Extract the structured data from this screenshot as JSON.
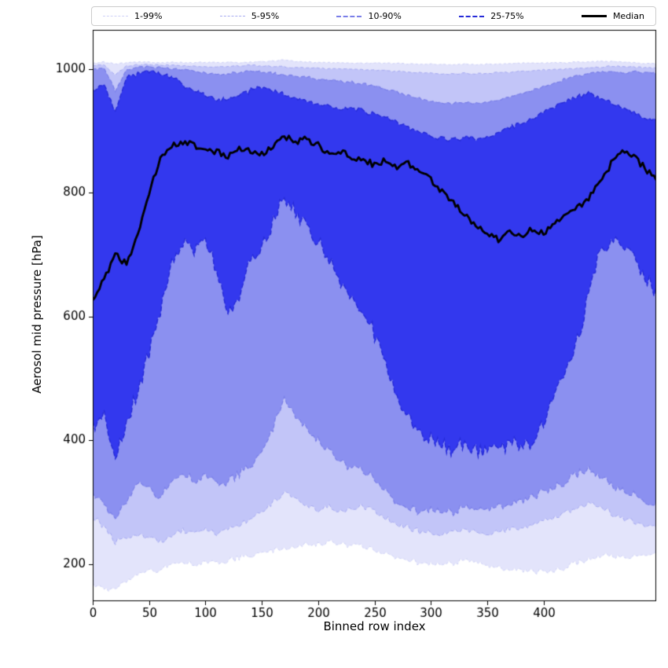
{
  "legend": {
    "position": "top",
    "items": [
      {
        "label": "1-99%",
        "color": "#cfd2f8",
        "style": "dashed",
        "width": 1
      },
      {
        "label": "5-95%",
        "color": "#a7abf2",
        "style": "dashed",
        "width": 1
      },
      {
        "label": "10-90%",
        "color": "#7a7fe8",
        "style": "dashed",
        "width": 2
      },
      {
        "label": "25-75%",
        "color": "#262bd8",
        "style": "dashed",
        "width": 2
      },
      {
        "label": "Median",
        "color": "#000000",
        "style": "solid",
        "width": 3
      }
    ]
  },
  "chart_data": {
    "type": "area",
    "subtype": "percentile-fan",
    "title": "",
    "xlabel": "Binned row index",
    "ylabel": "Aerosol mid pressure [hPa]",
    "xlim": [
      0,
      500
    ],
    "ylim": [
      140,
      1063
    ],
    "xticks": [
      0,
      50,
      100,
      150,
      200,
      250,
      300,
      350,
      400
    ],
    "yticks": [
      200,
      400,
      600,
      800,
      1000
    ],
    "grid": false,
    "legend_labels": [
      "1-99%",
      "5-95%",
      "10-90%",
      "25-75%",
      "Median"
    ],
    "x": [
      0,
      10,
      20,
      30,
      40,
      50,
      60,
      70,
      80,
      90,
      100,
      110,
      120,
      130,
      140,
      150,
      160,
      170,
      180,
      190,
      200,
      210,
      220,
      230,
      240,
      250,
      260,
      270,
      280,
      290,
      300,
      310,
      320,
      330,
      340,
      350,
      360,
      370,
      380,
      390,
      400,
      410,
      420,
      430,
      440,
      450,
      460,
      470,
      480,
      490,
      500
    ],
    "series": {
      "q01": [
        168,
        162,
        158,
        172,
        182,
        188,
        192,
        198,
        202,
        200,
        204,
        202,
        206,
        210,
        214,
        218,
        222,
        226,
        228,
        230,
        232,
        234,
        232,
        230,
        228,
        224,
        218,
        212,
        206,
        202,
        200,
        198,
        202,
        205,
        202,
        198,
        195,
        192,
        190,
        188,
        186,
        190,
        196,
        202,
        208,
        212,
        215,
        212,
        210,
        215,
        218
      ],
      "q05": [
        275,
        260,
        235,
        245,
        250,
        240,
        235,
        245,
        255,
        250,
        255,
        250,
        255,
        262,
        272,
        285,
        300,
        315,
        305,
        295,
        288,
        292,
        285,
        290,
        295,
        285,
        275,
        265,
        258,
        252,
        250,
        248,
        252,
        255,
        250,
        248,
        252,
        255,
        258,
        262,
        268,
        275,
        282,
        290,
        298,
        290,
        282,
        275,
        268,
        262,
        258
      ],
      "q10": [
        315,
        300,
        270,
        300,
        330,
        320,
        310,
        330,
        345,
        335,
        345,
        330,
        335,
        345,
        360,
        380,
        420,
        470,
        440,
        415,
        400,
        380,
        365,
        355,
        350,
        340,
        320,
        300,
        290,
        285,
        288,
        282,
        285,
        290,
        286,
        290,
        295,
        298,
        302,
        308,
        315,
        325,
        335,
        345,
        355,
        340,
        330,
        320,
        310,
        300,
        295
      ],
      "q25": [
        420,
        445,
        370,
        430,
        480,
        540,
        610,
        680,
        720,
        705,
        725,
        680,
        600,
        635,
        690,
        720,
        755,
        790,
        770,
        745,
        720,
        690,
        655,
        635,
        605,
        570,
        520,
        470,
        435,
        415,
        400,
        392,
        385,
        392,
        385,
        380,
        388,
        395,
        390,
        398,
        420,
        475,
        520,
        560,
        640,
        700,
        728,
        718,
        700,
        665,
        635
      ],
      "median": [
        628,
        660,
        700,
        685,
        735,
        800,
        855,
        875,
        882,
        878,
        870,
        866,
        858,
        872,
        866,
        862,
        876,
        890,
        882,
        886,
        876,
        862,
        868,
        856,
        852,
        845,
        852,
        842,
        848,
        836,
        820,
        804,
        786,
        762,
        748,
        732,
        724,
        738,
        728,
        742,
        734,
        752,
        764,
        776,
        792,
        818,
        846,
        868,
        858,
        840,
        822
      ],
      "q75": [
        965,
        975,
        932,
        985,
        992,
        996,
        992,
        986,
        975,
        965,
        958,
        948,
        952,
        958,
        965,
        970,
        965,
        958,
        952,
        948,
        942,
        938,
        932,
        938,
        932,
        928,
        922,
        915,
        905,
        898,
        892,
        888,
        885,
        890,
        886,
        890,
        898,
        905,
        912,
        920,
        930,
        940,
        948,
        955,
        960,
        952,
        945,
        938,
        930,
        922,
        918
      ],
      "q90": [
        1000,
        1002,
        965,
        998,
        1002,
        1003,
        1002,
        1000,
        998,
        996,
        994,
        990,
        992,
        994,
        996,
        995,
        993,
        990,
        988,
        986,
        984,
        982,
        980,
        978,
        976,
        972,
        968,
        962,
        958,
        952,
        948,
        945,
        944,
        946,
        944,
        946,
        950,
        955,
        960,
        965,
        972,
        978,
        984,
        988,
        992,
        995,
        996,
        994,
        996,
        995,
        994
      ],
      "q95": [
        1006,
        1007,
        990,
        1005,
        1006,
        1007,
        1006,
        1006,
        1005,
        1005,
        1004,
        1003,
        1004,
        1005,
        1006,
        1005,
        1004,
        1003,
        1002,
        1002,
        1001,
        1000,
        1000,
        999,
        999,
        998,
        997,
        996,
        995,
        994,
        993,
        992,
        992,
        993,
        992,
        993,
        994,
        995,
        996,
        997,
        998,
        999,
        1000,
        1001,
        1002,
        1003,
        1004,
        1004,
        1003,
        1002,
        1001
      ],
      "q99": [
        1010,
        1011,
        1008,
        1010,
        1011,
        1011,
        1010,
        1011,
        1010,
        1010,
        1011,
        1010,
        1011,
        1010,
        1011,
        1012,
        1013,
        1014,
        1012,
        1011,
        1010,
        1010,
        1009,
        1010,
        1009,
        1010,
        1009,
        1009,
        1008,
        1008,
        1008,
        1007,
        1007,
        1008,
        1007,
        1008,
        1008,
        1009,
        1009,
        1009,
        1010,
        1010,
        1010,
        1011,
        1011,
        1012,
        1012,
        1011,
        1010,
        1009,
        1009
      ]
    },
    "bands": [
      {
        "label": "1-99%",
        "lower": "q01",
        "upper": "q99",
        "fill": "#e3e4fb",
        "edge": "#cfd2f8",
        "edge_width": 1.0,
        "dash": [
          3,
          3
        ]
      },
      {
        "label": "5-95%",
        "lower": "q05",
        "upper": "q95",
        "fill": "#c2c5f8",
        "edge": "#a7abf2",
        "edge_width": 1.0,
        "dash": [
          4,
          3
        ]
      },
      {
        "label": "10-90%",
        "lower": "q10",
        "upper": "q90",
        "fill": "#8b90f0",
        "edge": "#7a7fe8",
        "edge_width": 1.2,
        "dash": [
          5,
          3
        ]
      },
      {
        "label": "25-75%",
        "lower": "q25",
        "upper": "q75",
        "fill": "#3338ee",
        "edge": "#262bd8",
        "edge_width": 1.4,
        "dash": [
          6,
          3
        ]
      }
    ],
    "median_line": {
      "label": "Median",
      "color": "#000000",
      "width": 2.8
    },
    "roughness": {
      "q01": 6,
      "q05": 6,
      "q10": 9,
      "q25": 16,
      "median": 6,
      "q75": 5,
      "q90": 2.5,
      "q95": 1.5,
      "q99": 1.2
    }
  }
}
